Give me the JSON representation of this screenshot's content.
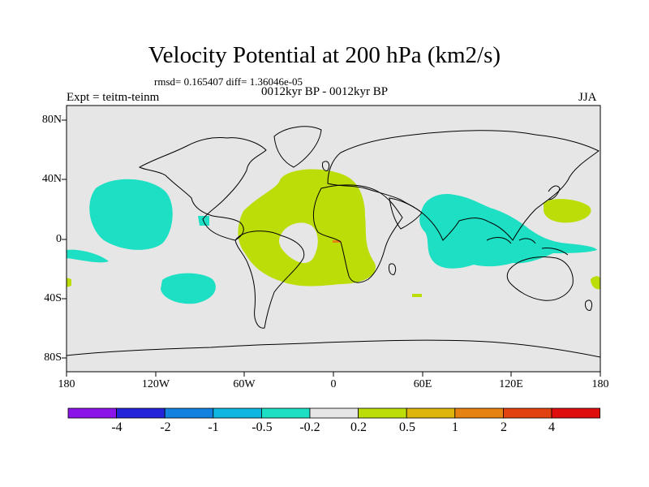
{
  "title": "Velocity Potential at 200 hPa (km2/s)",
  "stats": "rmsd= 0.165407  diff= 1.36046e-05",
  "expt": "Expt = teitm-teinm",
  "period": "0012kyr BP - 0012kyr BP",
  "season": "JJA",
  "map": {
    "projection": "cylindrical-equidistant",
    "background_color": "#e6e6e6",
    "lat_ticks": [
      "80N",
      "40N",
      "0",
      "40S",
      "80S"
    ],
    "lon_ticks": [
      "180",
      "120W",
      "60W",
      "0",
      "60E",
      "120E",
      "180"
    ],
    "regions": [
      {
        "name": "north-pacific-negative",
        "level": "-0.5 to -0.2",
        "color": "#1ddfc3"
      },
      {
        "name": "south-pacific-negative",
        "level": "-0.5 to -0.2",
        "color": "#1ddfc3"
      },
      {
        "name": "asia-indian-ocean-negative",
        "level": "-0.5 to -0.2",
        "color": "#1ddfc3"
      },
      {
        "name": "atlantic-positive",
        "level": "0.2 to 0.5",
        "color": "#bcdd08"
      },
      {
        "name": "west-pacific-positive",
        "level": "0.2 to 0.5",
        "color": "#bcdd08"
      }
    ]
  },
  "colorbar": {
    "colors": [
      "#8b14e8",
      "#2323d9",
      "#1281e0",
      "#0fb6df",
      "#1ddfc3",
      "#e6e6e6",
      "#bcdd08",
      "#ddb50c",
      "#e58211",
      "#e2420f",
      "#e00d0d"
    ],
    "labels": [
      "-4",
      "-2",
      "-1",
      "-0.5",
      "-0.2",
      "0.2",
      "0.5",
      "1",
      "2",
      "4"
    ]
  }
}
